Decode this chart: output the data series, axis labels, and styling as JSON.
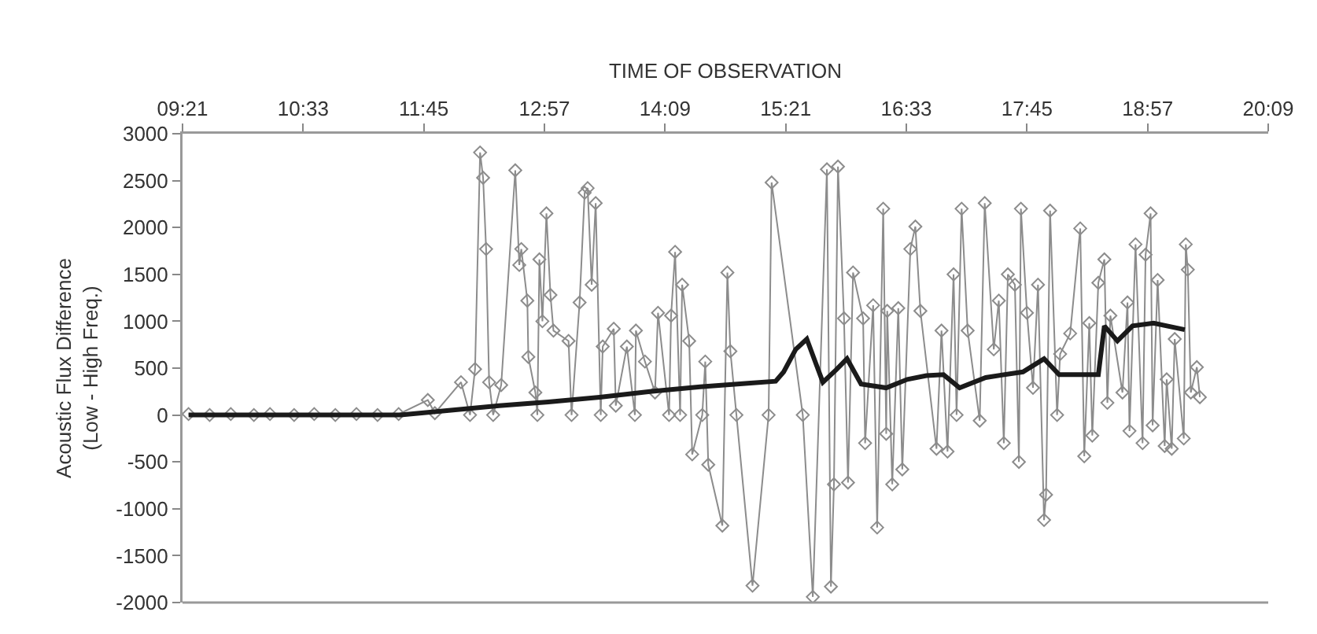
{
  "chart_data": {
    "type": "line",
    "xlabel": "TIME OF OBSERVATION",
    "ylabel": "Acoustic Flux Difference\n(Low - High Freq.)",
    "xlim": [
      9.35,
      20.15
    ],
    "xticks": [
      {
        "value": 9.35,
        "label": "09:21"
      },
      {
        "value": 10.55,
        "label": "10:33"
      },
      {
        "value": 11.75,
        "label": "11:45"
      },
      {
        "value": 12.95,
        "label": "12:57"
      },
      {
        "value": 14.15,
        "label": "14:09"
      },
      {
        "value": 15.35,
        "label": "15:21"
      },
      {
        "value": 16.55,
        "label": "16:33"
      },
      {
        "value": 17.75,
        "label": "17:45"
      },
      {
        "value": 18.95,
        "label": "18:57"
      },
      {
        "value": 20.15,
        "label": "20:09"
      }
    ],
    "ylim": [
      -2000,
      3000
    ],
    "yticks": [
      -2000,
      -1500,
      -1000,
      -500,
      0,
      500,
      1000,
      1500,
      2000,
      2500,
      3000
    ],
    "grid": false,
    "series": [
      {
        "color": "#8c8c8c",
        "marker": "diamond",
        "line_style": "solid",
        "x": [
          9.41,
          9.62,
          9.83,
          10.06,
          10.22,
          10.46,
          10.66,
          10.87,
          11.08,
          11.29,
          11.5,
          11.79,
          11.86,
          12.12,
          12.21,
          12.26,
          12.31,
          12.34,
          12.37,
          12.4,
          12.44,
          12.52,
          12.66,
          12.7,
          12.72,
          12.78,
          12.79,
          12.86,
          12.88,
          12.9,
          12.93,
          12.97,
          13.01,
          13.04,
          13.19,
          13.22,
          13.3,
          13.35,
          13.38,
          13.42,
          13.46,
          13.51,
          13.53,
          13.64,
          13.66,
          13.77,
          13.85,
          13.86,
          13.95,
          14.05,
          14.08,
          14.19,
          14.21,
          14.25,
          14.3,
          14.32,
          14.39,
          14.42,
          14.52,
          14.55,
          14.58,
          14.72,
          14.77,
          14.8,
          14.86,
          15.02,
          15.18,
          15.21,
          15.52,
          15.62,
          15.76,
          15.8,
          15.83,
          15.87,
          15.93,
          15.97,
          16.02,
          16.12,
          16.14,
          16.22,
          16.26,
          16.32,
          16.35,
          16.36,
          16.41,
          16.47,
          16.51,
          16.59,
          16.64,
          16.69,
          16.85,
          16.9,
          16.96,
          17.02,
          17.05,
          17.1,
          17.16,
          17.28,
          17.33,
          17.42,
          17.47,
          17.52,
          17.56,
          17.63,
          17.67,
          17.69,
          17.75,
          17.81,
          17.86,
          17.92,
          17.94,
          17.98,
          18.05,
          18.08,
          18.18,
          18.28,
          18.32,
          18.37,
          18.4,
          18.46,
          18.52,
          18.55,
          18.58,
          18.7,
          18.75,
          18.77,
          18.83,
          18.9,
          18.93,
          18.98,
          19.0,
          19.05,
          19.12,
          19.14,
          19.19,
          19.22,
          19.31,
          19.33,
          19.35,
          19.38,
          19.44,
          19.47
        ],
        "values": [
          10,
          0,
          10,
          0,
          10,
          0,
          10,
          0,
          10,
          0,
          10,
          160,
          20,
          350,
          0,
          490,
          2800,
          2530,
          1770,
          350,
          0,
          320,
          2610,
          1600,
          1770,
          1220,
          620,
          240,
          0,
          1660,
          1000,
          2150,
          1280,
          900,
          790,
          0,
          1200,
          2370,
          2420,
          1390,
          2260,
          0,
          730,
          920,
          100,
          730,
          0,
          900,
          570,
          240,
          1090,
          0,
          1060,
          1740,
          0,
          1390,
          790,
          -420,
          0,
          570,
          -530,
          -1180,
          1520,
          680,
          0,
          -1820,
          0,
          2480,
          0,
          -1940,
          2620,
          -1830,
          -740,
          2650,
          1030,
          -720,
          1520,
          1030,
          -300,
          1170,
          -1200,
          2200,
          -200,
          1110,
          -740,
          1140,
          -580,
          1770,
          2010,
          1110,
          -360,
          900,
          -390,
          1500,
          0,
          2200,
          900,
          -60,
          2260,
          700,
          1220,
          -300,
          1500,
          1390,
          -500,
          2200,
          1090,
          290,
          1390,
          -1120,
          -850,
          2180,
          0,
          650,
          870,
          1990,
          -440,
          980,
          -220,
          1410,
          1660,
          130,
          1060,
          240,
          1200,
          -170,
          1820,
          -300,
          1710,
          2150,
          -110,
          1440,
          -330,
          380,
          -360,
          810,
          -250,
          1820,
          1550,
          240,
          510,
          190
        ]
      },
      {
        "color": "#1a1a1a",
        "marker": "none",
        "line_style": "solid",
        "x": [
          9.41,
          11.52,
          12.0,
          12.5,
          12.99,
          13.5,
          14.0,
          14.5,
          15.0,
          15.25,
          15.33,
          15.45,
          15.56,
          15.65,
          15.72,
          15.85,
          15.96,
          16.1,
          16.35,
          16.56,
          16.75,
          16.92,
          17.08,
          17.34,
          17.71,
          17.92,
          18.07,
          18.46,
          18.52,
          18.65,
          18.8,
          19.01,
          19.32
        ],
        "values": [
          0,
          0,
          50,
          100,
          140,
          190,
          250,
          300,
          340,
          360,
          460,
          700,
          810,
          550,
          350,
          480,
          600,
          330,
          290,
          380,
          420,
          430,
          290,
          400,
          460,
          600,
          430,
          430,
          950,
          790,
          950,
          980,
          910
        ]
      }
    ]
  }
}
